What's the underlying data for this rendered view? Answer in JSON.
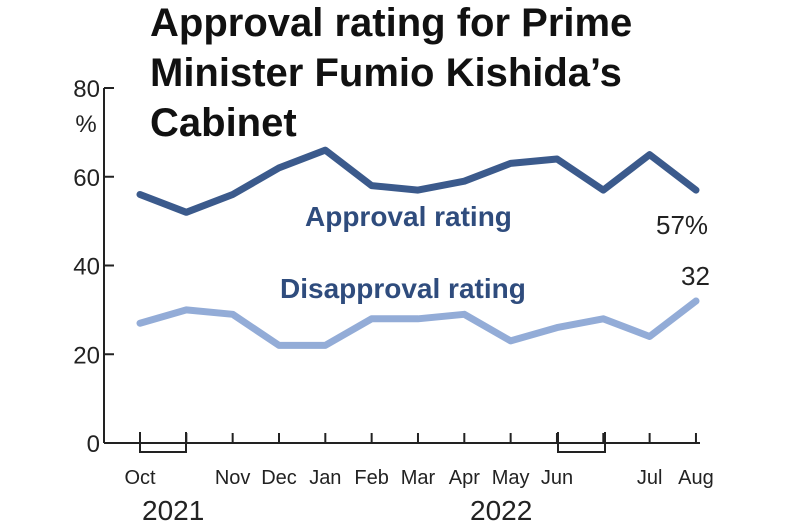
{
  "chart_data": {
    "type": "line",
    "title_lines": [
      "Approval rating for Prime",
      "Minister Fumio Kishida’s",
      "Cabinet"
    ],
    "y_unit": "%",
    "ylim": [
      0,
      80
    ],
    "yticks": [
      0,
      20,
      40,
      60,
      80
    ],
    "grid": false,
    "categories": [
      "Oct",
      "",
      "Nov",
      "Dec",
      "Jan",
      "Feb",
      "Mar",
      "Apr",
      "May",
      "Jun",
      "",
      "Jul",
      "Aug"
    ],
    "year_labels": [
      {
        "text": "2021"
      },
      {
        "text": "2022"
      }
    ],
    "series": [
      {
        "name": "Approval rating",
        "color": "#3b5a8c",
        "values": [
          56,
          52,
          56,
          62,
          66,
          58,
          57,
          59,
          63,
          64,
          57,
          65,
          57
        ],
        "end_label": "57%"
      },
      {
        "name": "Disapproval rating",
        "color": "#93acd7",
        "values": [
          27,
          30,
          29,
          22,
          22,
          28,
          28,
          29,
          23,
          26,
          28,
          24,
          32
        ],
        "end_label": "32"
      }
    ]
  }
}
